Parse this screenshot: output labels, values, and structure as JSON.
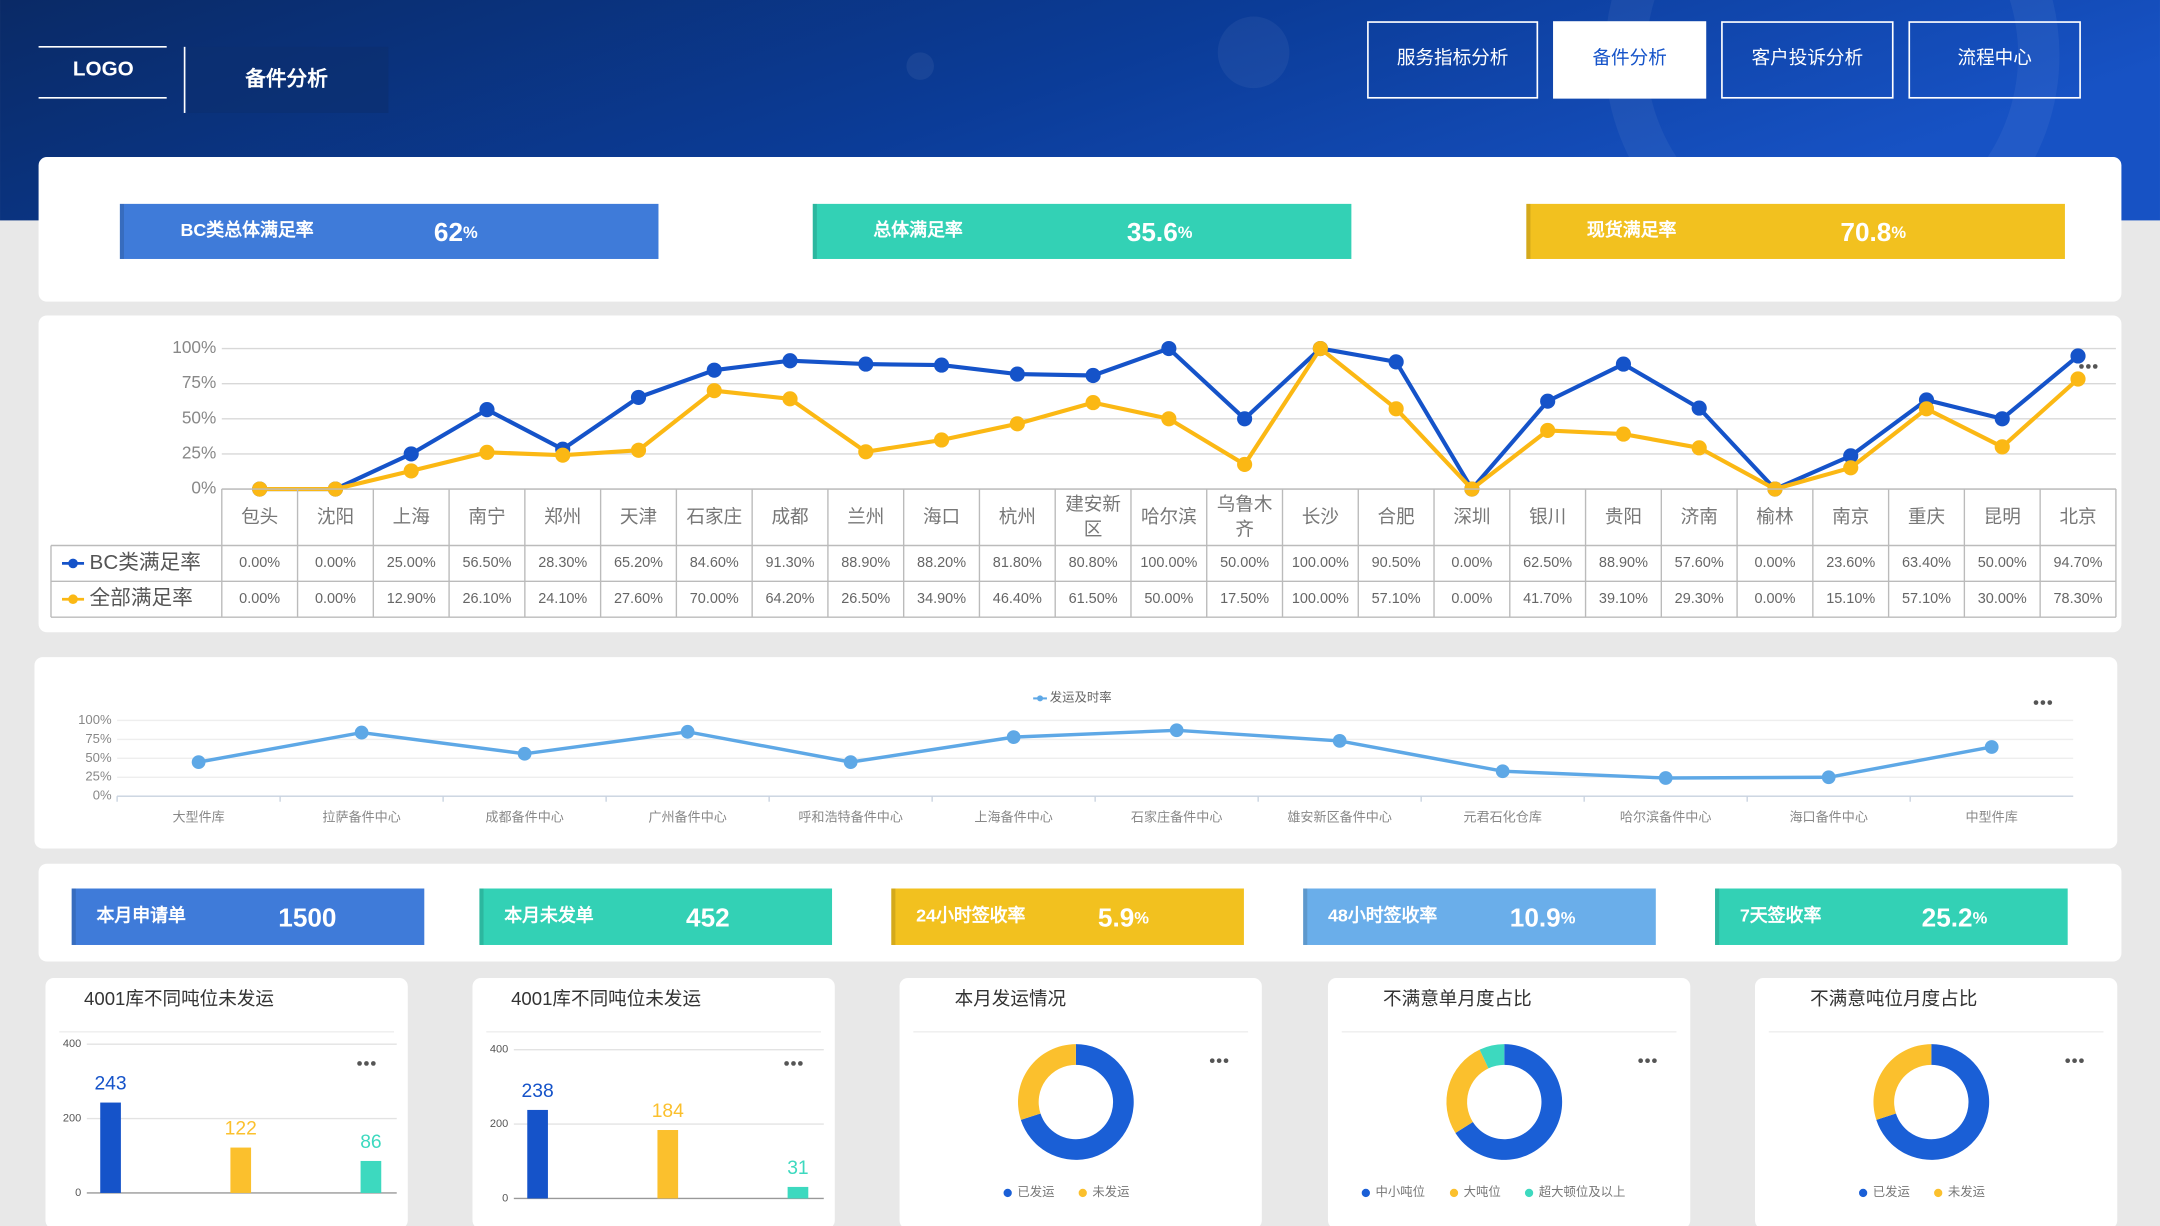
{
  "header": {
    "logo": "LOGO",
    "title": "备件分析",
    "nav": [
      "服务指标分析",
      "备件分析",
      "客户投诉分析",
      "流程中心"
    ],
    "active_nav": 1
  },
  "kpis": [
    {
      "label": "BC类总体满足率",
      "value": 62,
      "unit": "%",
      "color": "#3f7bd9"
    },
    {
      "label": "总体满足率",
      "value": 35.6,
      "unit": "%",
      "color": "#33d1b5"
    },
    {
      "label": "现货满足率",
      "value": 70.8,
      "unit": "%",
      "color": "#f2c11f"
    }
  ],
  "kpis2": [
    {
      "label": "本月申请单",
      "value": 1500,
      "color": "#3f7bd9"
    },
    {
      "label": "本月未发单",
      "value": 452,
      "color": "#33d1b5"
    },
    {
      "label": "24小时签收率",
      "value": 5.9,
      "unit": "%",
      "color": "#f2c11f"
    },
    {
      "label": "48小时签收率",
      "value": 10.9,
      "unit": "%",
      "color": "#6aaeea"
    },
    {
      "label": "7天签收率",
      "value": 25.2,
      "unit": "%",
      "color": "#33d1b5"
    }
  ],
  "chart_data": [
    {
      "type": "line-table",
      "categories": [
        "包头",
        "沈阳",
        "上海",
        "南宁",
        "郑州",
        "天津",
        "石家庄",
        "成都",
        "兰州",
        "海口",
        "杭州",
        "建安新区",
        "哈尔滨",
        "乌鲁木齐",
        "长沙",
        "合肥",
        "深圳",
        "银川",
        "贵阳",
        "济南",
        "榆林",
        "南京",
        "重庆",
        "昆明",
        "北京"
      ],
      "series": [
        {
          "name": "BC类满足率",
          "color": "#1553c9",
          "values": [
            0,
            0,
            25,
            56.5,
            28.3,
            65.2,
            84.6,
            91.3,
            88.9,
            88.2,
            81.8,
            80.8,
            100,
            50,
            100,
            90.5,
            0,
            62.5,
            88.9,
            57.6,
            0,
            23.6,
            63.4,
            50,
            94.7
          ],
          "value_labels": [
            "0.00%",
            "0.00%",
            "25.00%",
            "56.50%",
            "28.30%",
            "65.20%",
            "84.60%",
            "91.30%",
            "88.90%",
            "88.20%",
            "81.80%",
            "80.80%",
            "100.00%",
            "50.00%",
            "100.00%",
            "90.50%",
            "0.00%",
            "62.50%",
            "88.90%",
            "57.60%",
            "0.00%",
            "23.60%",
            "63.40%",
            "50.00%",
            "94.70%"
          ]
        },
        {
          "name": "全部满足率",
          "color": "#fbb814",
          "values": [
            0,
            0,
            12.9,
            26.1,
            24.1,
            27.6,
            70,
            64.2,
            26.5,
            34.9,
            46.4,
            61.5,
            50,
            17.5,
            100,
            57.1,
            0,
            41.7,
            39.1,
            29.3,
            0,
            15.1,
            57.1,
            30,
            78.3
          ],
          "value_labels": [
            "0.00%",
            "0.00%",
            "12.90%",
            "26.10%",
            "24.10%",
            "27.60%",
            "70.00%",
            "64.20%",
            "26.50%",
            "34.90%",
            "46.40%",
            "61.50%",
            "50.00%",
            "17.50%",
            "100.00%",
            "57.10%",
            "0.00%",
            "41.70%",
            "39.10%",
            "29.30%",
            "0.00%",
            "15.10%",
            "57.10%",
            "30.00%",
            "78.30%"
          ]
        }
      ],
      "ylim": [
        0,
        100
      ],
      "yticks": [
        {
          "value": 0,
          "label": "0%"
        },
        {
          "value": 25,
          "label": "25%"
        },
        {
          "value": 50,
          "label": "50%"
        },
        {
          "value": 75,
          "label": "75%"
        },
        {
          "value": 100,
          "label": "100%"
        }
      ],
      "grid": true
    },
    {
      "type": "line",
      "categories": [
        "大型件库",
        "拉萨备件中心",
        "成都备件中心",
        "广州备件中心",
        "呼和浩特备件中心",
        "上海备件中心",
        "石家庄备件中心",
        "雄安新区备件中心",
        "元君石化仓库",
        "哈尔滨备件中心",
        "海口备件中心",
        "中型件库"
      ],
      "series": [
        {
          "name": "发运及时率",
          "color": "#5ea8e6",
          "values": [
            45,
            84,
            56,
            85,
            45,
            78,
            87,
            73,
            33,
            24,
            25,
            65
          ]
        }
      ],
      "ylim": [
        0,
        100
      ],
      "yticks": [
        {
          "value": 0,
          "label": "0%"
        },
        {
          "value": 25,
          "label": "25%"
        },
        {
          "value": 50,
          "label": "50%"
        },
        {
          "value": 75,
          "label": "75%"
        },
        {
          "value": 100,
          "label": "100%"
        }
      ],
      "grid": true
    },
    {
      "type": "bar",
      "title": "4001库不同吨位未发运",
      "values": [
        243,
        122,
        86
      ],
      "colors": [
        "#1553c9",
        "#fbc02d",
        "#3dd9bf"
      ],
      "ylim": [
        0,
        400
      ],
      "yticks": [
        0,
        200,
        400
      ],
      "grid": true
    },
    {
      "type": "bar",
      "title": "4001库不同吨位未发运",
      "values": [
        238,
        184,
        31
      ],
      "colors": [
        "#1553c9",
        "#fbc02d",
        "#3dd9bf"
      ],
      "ylim": [
        0,
        400
      ],
      "yticks": [
        0,
        200,
        400
      ],
      "grid": true
    },
    {
      "type": "donut",
      "title": "本月发运情况",
      "categories": [
        "已发运",
        "未发运"
      ],
      "values": [
        70,
        30
      ],
      "colors": [
        "#1a5fd6",
        "#fbc02d"
      ]
    },
    {
      "type": "donut",
      "title": "不满意单月度占比",
      "categories": [
        "中小吨位",
        "大吨位",
        "超大顿位及以上"
      ],
      "values": [
        66,
        27,
        7
      ],
      "colors": [
        "#1a5fd6",
        "#fbc02d",
        "#3dd9bf"
      ]
    },
    {
      "type": "donut",
      "title": "不满意吨位月度占比",
      "categories": [
        "已发运",
        "未发运"
      ],
      "values": [
        70,
        30
      ],
      "colors": [
        "#1a5fd6",
        "#fbc02d"
      ]
    }
  ]
}
